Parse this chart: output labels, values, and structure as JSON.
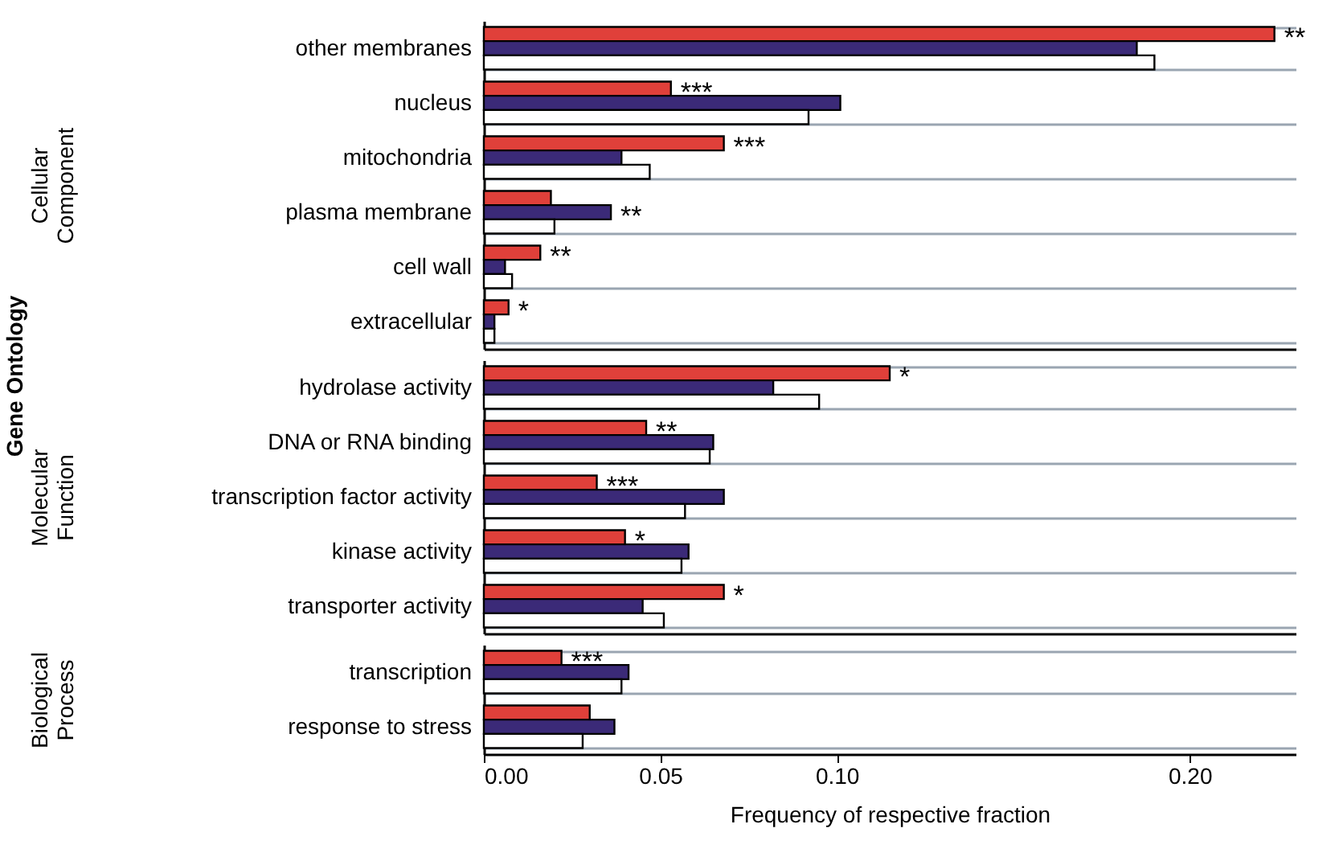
{
  "chart_data": [
    {
      "type": "bar",
      "orientation": "horizontal",
      "ylabel": "Cellular Component",
      "annotations": [
        "Gene Ontology",
        {
          "text": "**",
          "x": 0.224,
          "y": "other membranes"
        },
        {
          "text": "***",
          "x": 0.053,
          "y": "nucleus"
        },
        {
          "text": "***",
          "x": 0.068,
          "y": "mitochondria"
        },
        {
          "text": "**",
          "x": 0.036,
          "y": "plasma membrane"
        },
        {
          "text": "**",
          "x": 0.016,
          "y": "cell wall"
        },
        {
          "text": "*",
          "x": 0.007,
          "y": "extracellular"
        }
      ],
      "categories": [
        "other membranes",
        "nucleus",
        "mitochondria",
        "plasma membrane",
        "cell wall",
        "extracellular"
      ],
      "series": [
        {
          "color": "#e0403a",
          "values": [
            0.224,
            0.053,
            0.068,
            0.019,
            0.016,
            0.007
          ]
        },
        {
          "color": "#3b2a78",
          "values": [
            0.185,
            0.101,
            0.039,
            0.036,
            0.006,
            0.003
          ]
        },
        {
          "color": "#ffffff",
          "values": [
            0.19,
            0.092,
            0.047,
            0.02,
            0.008,
            0.003
          ]
        }
      ],
      "xlim": [
        0,
        0.23
      ],
      "grid": "y",
      "tick_labels": "y"
    },
    {
      "type": "bar",
      "orientation": "horizontal",
      "ylabel": "Molecular Function",
      "annotations": [
        {
          "text": "*",
          "x": 0.115,
          "y": "hydrolase activity"
        },
        {
          "text": "**",
          "x": 0.046,
          "y": "DNA or RNA binding"
        },
        {
          "text": "***",
          "x": 0.032,
          "y": "transcription factor activity"
        },
        {
          "text": "*",
          "x": 0.04,
          "y": "kinase activity"
        },
        {
          "text": "*",
          "x": 0.068,
          "y": "transporter activity"
        }
      ],
      "categories": [
        "hydrolase activity",
        "DNA or RNA binding",
        "transcription factor activity",
        "kinase activity",
        "transporter activity"
      ],
      "series": [
        {
          "color": "#e0403a",
          "values": [
            0.115,
            0.046,
            0.032,
            0.04,
            0.068
          ]
        },
        {
          "color": "#3b2a78",
          "values": [
            0.082,
            0.065,
            0.068,
            0.058,
            0.045
          ]
        },
        {
          "color": "#ffffff",
          "values": [
            0.095,
            0.064,
            0.057,
            0.056,
            0.051
          ]
        }
      ],
      "xlim": [
        0,
        0.23
      ],
      "grid": "y",
      "tick_labels": "y"
    },
    {
      "type": "bar",
      "orientation": "horizontal",
      "ylabel": "Biological Process",
      "xlabel": "Frequency of respective fraction",
      "annotations": [
        {
          "text": "***",
          "x": 0.022,
          "y": "transcription"
        }
      ],
      "categories": [
        "transcription",
        "response to stress"
      ],
      "series": [
        {
          "color": "#e0403a",
          "values": [
            0.022,
            0.03
          ]
        },
        {
          "color": "#3b2a78",
          "values": [
            0.041,
            0.037
          ]
        },
        {
          "color": "#ffffff",
          "values": [
            0.039,
            0.028
          ]
        }
      ],
      "xlim": [
        0,
        0.23
      ],
      "xticks": [
        {
          "value": 0,
          "label": "0.00"
        },
        {
          "value": 0.05,
          "label": "0.05"
        },
        {
          "value": 0.1,
          "label": "0.10"
        },
        {
          "value": 0.2,
          "label": "0.20"
        }
      ],
      "grid": "y"
    }
  ]
}
